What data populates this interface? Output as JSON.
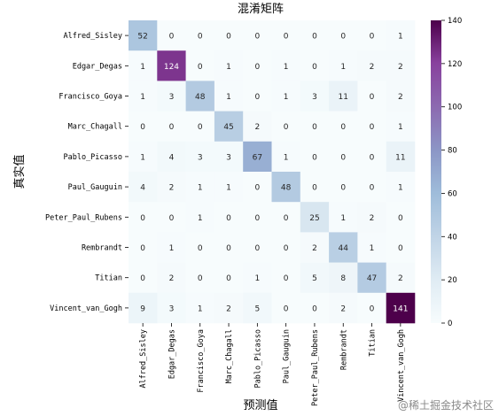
{
  "chart_data": {
    "type": "heatmap",
    "title": "混淆矩阵",
    "xlabel": "预测值",
    "ylabel": "真实值",
    "labels": [
      "Alfred_Sisley",
      "Edgar_Degas",
      "Francisco_Goya",
      "Marc_Chagall",
      "Pablo_Picasso",
      "Paul_Gauguin",
      "Peter_Paul_Rubens",
      "Rembrandt",
      "Titian",
      "Vincent_van_Gogh"
    ],
    "matrix": [
      [
        52,
        0,
        0,
        0,
        0,
        0,
        0,
        0,
        0,
        1
      ],
      [
        1,
        124,
        0,
        1,
        0,
        1,
        0,
        1,
        2,
        2
      ],
      [
        1,
        3,
        48,
        1,
        0,
        1,
        3,
        11,
        0,
        2
      ],
      [
        0,
        0,
        0,
        45,
        2,
        0,
        0,
        0,
        0,
        1
      ],
      [
        1,
        4,
        3,
        3,
        67,
        1,
        0,
        0,
        0,
        11
      ],
      [
        4,
        2,
        1,
        1,
        0,
        48,
        0,
        0,
        0,
        1
      ],
      [
        0,
        0,
        1,
        0,
        0,
        0,
        25,
        1,
        2,
        0
      ],
      [
        0,
        1,
        0,
        0,
        0,
        0,
        2,
        44,
        1,
        0
      ],
      [
        0,
        2,
        0,
        0,
        1,
        0,
        5,
        8,
        47,
        2
      ],
      [
        9,
        3,
        1,
        2,
        5,
        0,
        0,
        2,
        0,
        141
      ]
    ],
    "colorbar": {
      "min": 0,
      "max": 140,
      "ticks": [
        0,
        20,
        40,
        60,
        80,
        100,
        120,
        140
      ],
      "colormap": "BuPu"
    }
  },
  "watermark": "@稀土掘金技术社区"
}
